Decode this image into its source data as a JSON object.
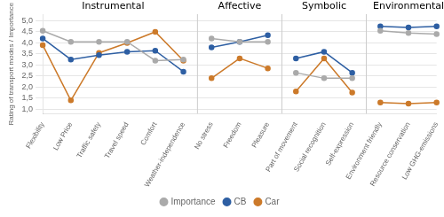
{
  "chart_data": {
    "type": "line",
    "categories": [
      "Flexibility",
      "Low Price",
      "Traffic safety",
      "Travel speed",
      "Comfort",
      "Weather-independence",
      "No stress",
      "Freedom",
      "Pleasure",
      "Part of movement",
      "Social recognition",
      "Self-expression",
      "Environment friendly",
      "Resource conservation",
      "Low GHG-emissions"
    ],
    "groups": [
      {
        "label": "Instrumental",
        "categories": [
          "Flexibility",
          "Low Price",
          "Traffic safety",
          "Travel speed",
          "Comfort",
          "Weather-independence"
        ]
      },
      {
        "label": "Affective",
        "categories": [
          "No stress",
          "Freedom",
          "Pleasure"
        ]
      },
      {
        "label": "Symbolic",
        "categories": [
          "Part of movement",
          "Social recognition",
          "Self-expression"
        ]
      },
      {
        "label": "Environmental",
        "categories": [
          "Environment friendly",
          "Resource conservation",
          "Low GHG-emissions"
        ]
      }
    ],
    "series": [
      {
        "name": "Importance",
        "color": "#aaaaaa",
        "values": [
          4.55,
          4.05,
          4.05,
          4.05,
          3.2,
          3.25,
          4.2,
          4.05,
          4.05,
          2.65,
          2.4,
          2.4,
          4.55,
          4.45,
          4.4
        ]
      },
      {
        "name": "CB",
        "color": "#2e5fa3",
        "values": [
          4.2,
          3.25,
          3.45,
          3.6,
          3.65,
          2.7,
          3.8,
          4.05,
          4.35,
          3.3,
          3.6,
          2.65,
          4.75,
          4.7,
          4.75
        ]
      },
      {
        "name": "Car",
        "color": "#cc7a2a",
        "values": [
          3.9,
          1.4,
          3.55,
          4.0,
          4.5,
          3.2,
          2.4,
          3.3,
          2.85,
          1.8,
          3.3,
          1.75,
          1.3,
          1.25,
          1.3
        ]
      }
    ],
    "ylabel": "Rating of transport modes / Importance",
    "ylim": [
      0.8,
      5.3
    ],
    "yticks": [
      {
        "value": 1.0,
        "label": "1,0"
      },
      {
        "value": 1.5,
        "label": "1,5"
      },
      {
        "value": 2.0,
        "label": "2,0"
      },
      {
        "value": 2.5,
        "label": "2,5"
      },
      {
        "value": 3.0,
        "label": "3,0"
      },
      {
        "value": 3.5,
        "label": "3,5"
      },
      {
        "value": 4.0,
        "label": "4,0"
      },
      {
        "value": 4.5,
        "label": "4,5"
      },
      {
        "value": 5.0,
        "label": "5,0"
      }
    ],
    "grid": true,
    "legend": "bottom",
    "marker": "circle"
  }
}
